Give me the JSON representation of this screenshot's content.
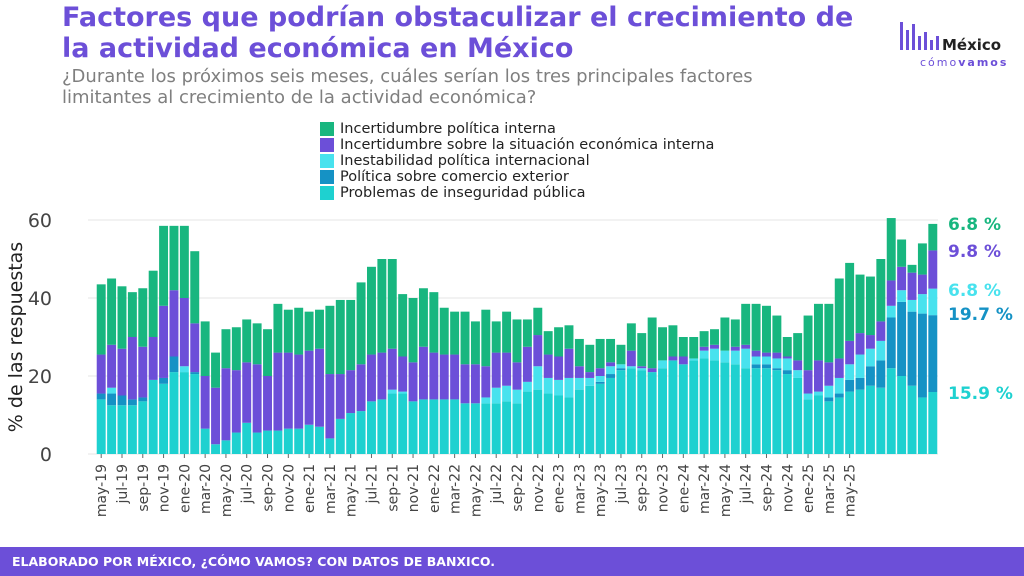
{
  "header": {
    "title": "Factores que podrían obstaculizar el crecimiento de la actividad económica en México",
    "subtitle": "¿Durante los próximos seis meses, cuáles serían los tres principales factores limitantes al crecimiento de la actividad económica?"
  },
  "logo": {
    "word1": "México",
    "word2_a": "cómo",
    "word2_b": "vamos"
  },
  "footer": {
    "text": "ELABORADO POR MÉXICO, ¿CÓMO VAMOS? CON DATOS DE BANXICO."
  },
  "colors": {
    "Problemas de inseguridad pública": "#1ed1d0",
    "Política sobre comercio exterior": "#1592c5",
    "Inestabilidad política internacional": "#48e2ee",
    "Incertidumbre sobre la situación económica interna": "#6c4fd8",
    "Incertidumbre política interna": "#18b67f"
  },
  "legend": [
    "Incertidumbre política interna",
    "Incertidumbre sobre la situación económica interna",
    "Inestabilidad política internacional",
    "Política sobre comercio exterior",
    "Problemas de inseguridad pública"
  ],
  "chart_data": {
    "type": "bar",
    "stacked": true,
    "ylabel": "% de las respuestas",
    "ylim": [
      0,
      60
    ],
    "yticks": [
      0,
      20,
      40,
      60
    ],
    "tick_labels": [
      "may-19",
      "jul-19",
      "sep-19",
      "nov-19",
      "ene-20",
      "mar-20",
      "may-20",
      "jul-20",
      "sep-20",
      "nov-20",
      "ene-21",
      "mar-21",
      "may-21",
      "jul-21",
      "sep-21",
      "nov-21",
      "ene-22",
      "mar-22",
      "may-22",
      "jul-22",
      "sep-22",
      "nov-22",
      "ene-23",
      "mar-23",
      "may-23",
      "jul-23",
      "sep-23",
      "nov-23",
      "ene-24",
      "mar-24",
      "may-24",
      "jul-24",
      "sep-24",
      "nov-24",
      "ene-25",
      "mar-25",
      "may-25"
    ],
    "series": [
      {
        "name": "Problemas de inseguridad pública",
        "values": [
          14,
          12.5,
          12.5,
          12.5,
          13.5,
          19,
          18,
          21,
          21,
          20.5,
          6.5,
          2.5,
          3.5,
          5.5,
          8,
          5.5,
          6,
          6,
          6.5,
          6.5,
          7.5,
          7,
          4,
          9,
          10.5,
          11,
          13.5,
          14,
          15.5,
          15.5,
          13.5,
          14,
          14,
          14,
          14,
          13,
          13,
          13,
          13,
          13.5,
          13,
          16,
          16.5,
          15.5,
          15,
          14.5,
          16.5,
          17.5,
          18,
          19.5,
          21.5,
          22,
          21.5,
          21,
          22,
          24,
          23,
          24,
          24.5,
          24,
          23.5,
          23,
          22,
          22,
          22,
          21.5,
          20.5,
          19.5,
          14,
          15,
          13.5,
          14.5,
          16,
          16.5,
          17.5,
          17,
          22,
          20,
          17.5,
          14.5,
          15.9
        ]
      },
      {
        "name": "Política sobre comercio exterior",
        "values": [
          1.5,
          3,
          2.5,
          1.5,
          1,
          0,
          1.5,
          4,
          0,
          0.5,
          0,
          0,
          0,
          0,
          0,
          0,
          0,
          0,
          0,
          0,
          0,
          0,
          0,
          0,
          0,
          0,
          0,
          0,
          0,
          0,
          0,
          0,
          0,
          0,
          0,
          0,
          0,
          0,
          0,
          0,
          0,
          0,
          0,
          0,
          0,
          0,
          0,
          0,
          0.5,
          1,
          0.5,
          0,
          0,
          0,
          0,
          0,
          0,
          0,
          0,
          0,
          0,
          0,
          0,
          1,
          1,
          0.5,
          1,
          0,
          0,
          0,
          1,
          1,
          3,
          3,
          5,
          7,
          13,
          19,
          19,
          21.5,
          19.7
        ]
      },
      {
        "name": "Inestabilidad política internacional",
        "values": [
          0,
          1.5,
          0,
          0,
          0,
          0,
          0,
          0,
          1.5,
          0,
          0,
          0,
          0,
          0,
          0,
          0,
          0,
          0,
          0,
          0,
          0,
          0,
          0,
          0,
          0,
          0,
          0,
          0,
          1,
          0.5,
          0,
          0,
          0,
          0,
          0,
          0,
          0,
          1.5,
          4,
          4,
          3.5,
          2.5,
          6,
          4,
          4,
          5,
          3,
          2,
          1.5,
          2,
          1,
          0.5,
          0.5,
          0,
          2,
          0,
          0,
          0.5,
          2,
          3,
          3,
          3.5,
          5,
          2,
          2,
          2.5,
          3,
          2,
          1.5,
          1,
          3,
          4,
          4,
          6,
          4.5,
          5,
          3,
          3,
          3,
          5,
          6.8
        ]
      },
      {
        "name": "Incertidumbre sobre la situación económica interna",
        "values": [
          10,
          11,
          12,
          16,
          13,
          11,
          18.5,
          17,
          17.5,
          12.5,
          13.5,
          14.5,
          18.5,
          16,
          15.5,
          17.5,
          14,
          20,
          19.5,
          19,
          19,
          20,
          16.5,
          11.5,
          11,
          12,
          12,
          12,
          10.5,
          9,
          10,
          13.5,
          12,
          11.5,
          11.5,
          10,
          10,
          8,
          9,
          8.5,
          7,
          9,
          8,
          6,
          6,
          7.5,
          3,
          1.5,
          2,
          1,
          0,
          4,
          0.5,
          1,
          0,
          1,
          2,
          0,
          1,
          1,
          0,
          1,
          1,
          1.5,
          1,
          1.5,
          0.5,
          2.5,
          6,
          8,
          6,
          5,
          6,
          5.5,
          3.5,
          5,
          6.5,
          6,
          7,
          5,
          9.8
        ]
      },
      {
        "name": "Incertidumbre política interna",
        "values": [
          18,
          17,
          16,
          11.5,
          15,
          17,
          20.5,
          16.5,
          18.5,
          18.5,
          14,
          9,
          10,
          11,
          11,
          10.5,
          12,
          12.5,
          11,
          12,
          10,
          10,
          17.5,
          19,
          18,
          21,
          22.5,
          24,
          23,
          16,
          16.5,
          15,
          15.5,
          12,
          11,
          13.5,
          11,
          14.5,
          8,
          10.5,
          11,
          7,
          7,
          6,
          7.5,
          6,
          7,
          7,
          7.5,
          6,
          5,
          7,
          8.5,
          13,
          8.5,
          8,
          5,
          5.5,
          4,
          4,
          8.5,
          7,
          10.5,
          12,
          12,
          9.5,
          5,
          7,
          14,
          14.5,
          15,
          20.5,
          20,
          15,
          15,
          16,
          16,
          7,
          2,
          8,
          6.8
        ]
      }
    ],
    "end_labels": [
      "15.9 %",
      "19.7 %",
      "6.8 %",
      "9.8 %",
      "6.8 %"
    ]
  }
}
